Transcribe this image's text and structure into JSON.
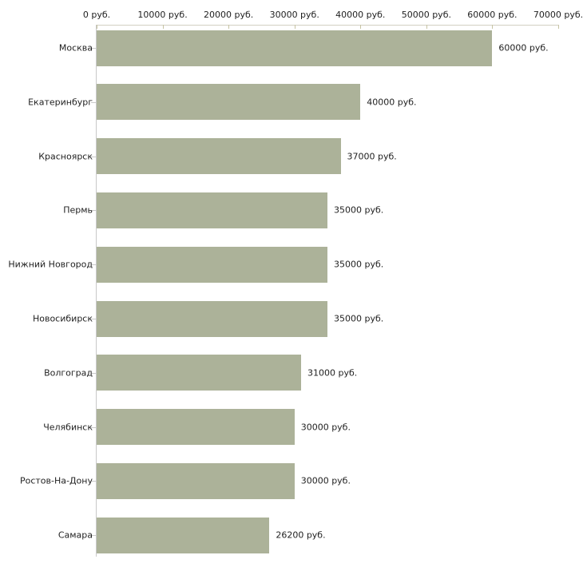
{
  "chart_data": {
    "type": "bar",
    "orientation": "horizontal",
    "title": "",
    "categories": [
      "Москва",
      "Екатеринбург",
      "Красноярск",
      "Пермь",
      "Нижний Новгород",
      "Новосибирск",
      "Волгоград",
      "Челябинск",
      "Ростов-На-Дону",
      "Самара"
    ],
    "values": [
      60000,
      40000,
      37000,
      35000,
      35000,
      35000,
      31000,
      30000,
      30000,
      26200
    ],
    "value_labels": [
      "60000 руб.",
      "40000 руб.",
      "37000 руб.",
      "35000 руб.",
      "35000 руб.",
      "35000 руб.",
      "31000 руб.",
      "30000 руб.",
      "30000 руб.",
      "26200 руб."
    ],
    "x_ticks": [
      0,
      10000,
      20000,
      30000,
      40000,
      50000,
      60000,
      70000
    ],
    "x_tick_labels": [
      "0 руб.",
      "10000 руб.",
      "20000 руб.",
      "30000 руб.",
      "40000 руб.",
      "50000 руб.",
      "60000 руб.",
      "70000 руб."
    ],
    "xlim": [
      0,
      70000
    ],
    "legend": null,
    "grid": false,
    "axis_position": "top",
    "colors": {
      "bar": "#acb299",
      "x_axis_line": "#d2cfc2",
      "x_tick": "#c6c3a3",
      "y_axis_line": "#c9c9c9",
      "text": "#1f1f1f",
      "background": "#ffffff"
    }
  }
}
